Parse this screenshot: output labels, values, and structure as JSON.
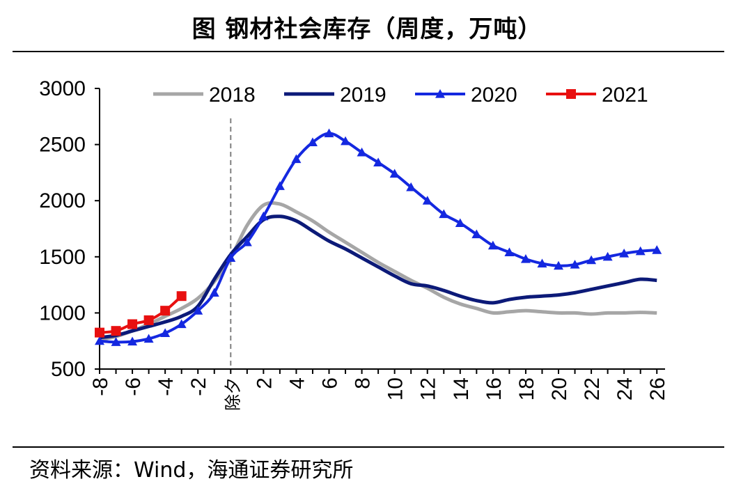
{
  "title": "图  钢材社会库存（周度，万吨）",
  "source": "资料来源：Wind，海通证券研究所",
  "colors": {
    "2018": "#a6a6a6",
    "2019": "#0c1a78",
    "2020": "#1428e0",
    "2021": "#e81010",
    "axis": "#000000",
    "marker_line": "#7f7f7f"
  },
  "chart_data": {
    "type": "line",
    "title": "图  钢材社会库存（周度，万吨）",
    "xlabel": "",
    "ylabel": "",
    "xlim": [
      -8,
      26.5
    ],
    "ylim": [
      500,
      3000
    ],
    "yticks": [
      500,
      1000,
      1500,
      2000,
      2500,
      3000
    ],
    "xticks": [
      -8,
      -6,
      -4,
      -2,
      0,
      2,
      4,
      6,
      8,
      10,
      12,
      14,
      16,
      18,
      20,
      22,
      24,
      26
    ],
    "xtick_labels": [
      "-8",
      "-6",
      "-4",
      "-2",
      "除夕",
      "2",
      "4",
      "6",
      "8",
      "10",
      "12",
      "14",
      "16",
      "18",
      "20",
      "22",
      "24",
      "26"
    ],
    "vline_x": 0,
    "grid": false,
    "legend_position": "top",
    "series": [
      {
        "name": "2018",
        "marker": "none",
        "x": [
          -8,
          -7,
          -6,
          -5,
          -4,
          -3,
          -2,
          -1,
          0,
          1,
          2,
          3,
          4,
          5,
          6,
          7,
          8,
          9,
          10,
          11,
          12,
          13,
          14,
          15,
          16,
          17,
          18,
          19,
          20,
          21,
          22,
          23,
          24,
          25,
          26
        ],
        "y": [
          760,
          790,
          840,
          900,
          970,
          1040,
          1130,
          1280,
          1490,
          1780,
          1960,
          1970,
          1900,
          1820,
          1720,
          1630,
          1540,
          1450,
          1370,
          1290,
          1220,
          1140,
          1080,
          1040,
          1000,
          1010,
          1020,
          1010,
          1000,
          1000,
          990,
          1000,
          1000,
          1005,
          1000
        ]
      },
      {
        "name": "2019",
        "marker": "none",
        "x": [
          -8,
          -7,
          -6,
          -5,
          -4,
          -3,
          -2,
          -1,
          0,
          1,
          2,
          3,
          4,
          5,
          6,
          7,
          8,
          9,
          10,
          11,
          12,
          13,
          14,
          15,
          16,
          17,
          18,
          19,
          20,
          21,
          22,
          23,
          24,
          25,
          26
        ],
        "y": [
          780,
          800,
          840,
          880,
          920,
          970,
          1060,
          1300,
          1520,
          1680,
          1830,
          1860,
          1820,
          1730,
          1640,
          1570,
          1490,
          1410,
          1330,
          1260,
          1240,
          1200,
          1150,
          1110,
          1090,
          1120,
          1140,
          1150,
          1160,
          1180,
          1210,
          1240,
          1270,
          1300,
          1290
        ]
      },
      {
        "name": "2020",
        "marker": "triangle",
        "x": [
          -8,
          -7,
          -6,
          -5,
          -4,
          -3,
          -2,
          -1,
          0,
          1,
          2,
          3,
          4,
          5,
          6,
          7,
          8,
          9,
          10,
          11,
          12,
          13,
          14,
          15,
          16,
          17,
          18,
          19,
          20,
          21,
          22,
          23,
          24,
          25,
          26
        ],
        "y": [
          750,
          740,
          745,
          770,
          820,
          900,
          1020,
          1180,
          1490,
          1630,
          1860,
          2130,
          2370,
          2520,
          2600,
          2530,
          2430,
          2340,
          2240,
          2120,
          2000,
          1880,
          1800,
          1700,
          1600,
          1540,
          1480,
          1440,
          1420,
          1430,
          1470,
          1500,
          1530,
          1550,
          1560
        ]
      },
      {
        "name": "2021",
        "marker": "square",
        "x": [
          -8,
          -7,
          -6,
          -5,
          -4,
          -3
        ],
        "y": [
          825,
          840,
          900,
          935,
          1020,
          1150
        ]
      }
    ]
  }
}
